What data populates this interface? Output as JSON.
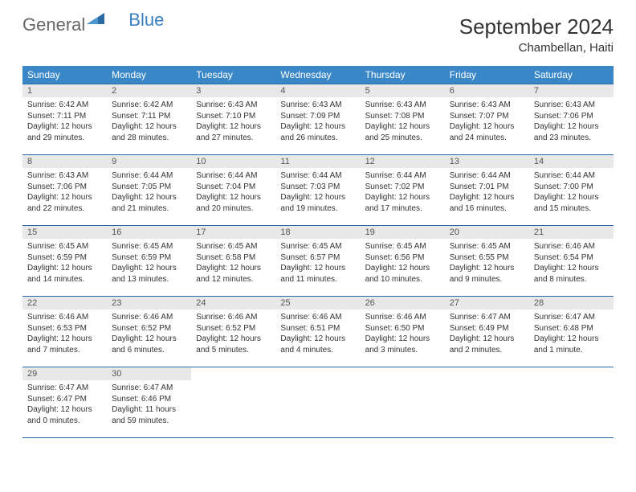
{
  "logo": {
    "text1": "General",
    "text2": "Blue"
  },
  "header": {
    "month_title": "September 2024",
    "location": "Chambellan, Haiti"
  },
  "colors": {
    "header_bg": "#3a87c7",
    "header_text": "#ffffff",
    "cell_border": "#2a6aa3",
    "daynum_bg": "#e8e8e8",
    "logo_blue": "#3a7fc4",
    "page_bg": "#ffffff"
  },
  "weekdays": [
    "Sunday",
    "Monday",
    "Tuesday",
    "Wednesday",
    "Thursday",
    "Friday",
    "Saturday"
  ],
  "weeks": [
    [
      {
        "day": "1",
        "sunrise": "6:42 AM",
        "sunset": "7:11 PM",
        "daylight": "12 hours and 29 minutes."
      },
      {
        "day": "2",
        "sunrise": "6:42 AM",
        "sunset": "7:11 PM",
        "daylight": "12 hours and 28 minutes."
      },
      {
        "day": "3",
        "sunrise": "6:43 AM",
        "sunset": "7:10 PM",
        "daylight": "12 hours and 27 minutes."
      },
      {
        "day": "4",
        "sunrise": "6:43 AM",
        "sunset": "7:09 PM",
        "daylight": "12 hours and 26 minutes."
      },
      {
        "day": "5",
        "sunrise": "6:43 AM",
        "sunset": "7:08 PM",
        "daylight": "12 hours and 25 minutes."
      },
      {
        "day": "6",
        "sunrise": "6:43 AM",
        "sunset": "7:07 PM",
        "daylight": "12 hours and 24 minutes."
      },
      {
        "day": "7",
        "sunrise": "6:43 AM",
        "sunset": "7:06 PM",
        "daylight": "12 hours and 23 minutes."
      }
    ],
    [
      {
        "day": "8",
        "sunrise": "6:43 AM",
        "sunset": "7:06 PM",
        "daylight": "12 hours and 22 minutes."
      },
      {
        "day": "9",
        "sunrise": "6:44 AM",
        "sunset": "7:05 PM",
        "daylight": "12 hours and 21 minutes."
      },
      {
        "day": "10",
        "sunrise": "6:44 AM",
        "sunset": "7:04 PM",
        "daylight": "12 hours and 20 minutes."
      },
      {
        "day": "11",
        "sunrise": "6:44 AM",
        "sunset": "7:03 PM",
        "daylight": "12 hours and 19 minutes."
      },
      {
        "day": "12",
        "sunrise": "6:44 AM",
        "sunset": "7:02 PM",
        "daylight": "12 hours and 17 minutes."
      },
      {
        "day": "13",
        "sunrise": "6:44 AM",
        "sunset": "7:01 PM",
        "daylight": "12 hours and 16 minutes."
      },
      {
        "day": "14",
        "sunrise": "6:44 AM",
        "sunset": "7:00 PM",
        "daylight": "12 hours and 15 minutes."
      }
    ],
    [
      {
        "day": "15",
        "sunrise": "6:45 AM",
        "sunset": "6:59 PM",
        "daylight": "12 hours and 14 minutes."
      },
      {
        "day": "16",
        "sunrise": "6:45 AM",
        "sunset": "6:59 PM",
        "daylight": "12 hours and 13 minutes."
      },
      {
        "day": "17",
        "sunrise": "6:45 AM",
        "sunset": "6:58 PM",
        "daylight": "12 hours and 12 minutes."
      },
      {
        "day": "18",
        "sunrise": "6:45 AM",
        "sunset": "6:57 PM",
        "daylight": "12 hours and 11 minutes."
      },
      {
        "day": "19",
        "sunrise": "6:45 AM",
        "sunset": "6:56 PM",
        "daylight": "12 hours and 10 minutes."
      },
      {
        "day": "20",
        "sunrise": "6:45 AM",
        "sunset": "6:55 PM",
        "daylight": "12 hours and 9 minutes."
      },
      {
        "day": "21",
        "sunrise": "6:46 AM",
        "sunset": "6:54 PM",
        "daylight": "12 hours and 8 minutes."
      }
    ],
    [
      {
        "day": "22",
        "sunrise": "6:46 AM",
        "sunset": "6:53 PM",
        "daylight": "12 hours and 7 minutes."
      },
      {
        "day": "23",
        "sunrise": "6:46 AM",
        "sunset": "6:52 PM",
        "daylight": "12 hours and 6 minutes."
      },
      {
        "day": "24",
        "sunrise": "6:46 AM",
        "sunset": "6:52 PM",
        "daylight": "12 hours and 5 minutes."
      },
      {
        "day": "25",
        "sunrise": "6:46 AM",
        "sunset": "6:51 PM",
        "daylight": "12 hours and 4 minutes."
      },
      {
        "day": "26",
        "sunrise": "6:46 AM",
        "sunset": "6:50 PM",
        "daylight": "12 hours and 3 minutes."
      },
      {
        "day": "27",
        "sunrise": "6:47 AM",
        "sunset": "6:49 PM",
        "daylight": "12 hours and 2 minutes."
      },
      {
        "day": "28",
        "sunrise": "6:47 AM",
        "sunset": "6:48 PM",
        "daylight": "12 hours and 1 minute."
      }
    ],
    [
      {
        "day": "29",
        "sunrise": "6:47 AM",
        "sunset": "6:47 PM",
        "daylight": "12 hours and 0 minutes."
      },
      {
        "day": "30",
        "sunrise": "6:47 AM",
        "sunset": "6:46 PM",
        "daylight": "11 hours and 59 minutes."
      },
      null,
      null,
      null,
      null,
      null
    ]
  ],
  "labels": {
    "sunrise_prefix": "Sunrise: ",
    "sunset_prefix": "Sunset: ",
    "daylight_prefix": "Daylight: "
  }
}
